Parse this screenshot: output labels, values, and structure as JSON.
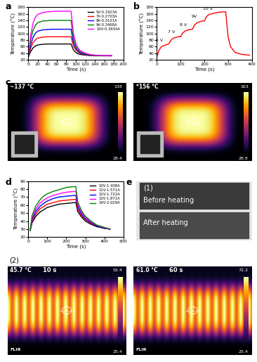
{
  "chart_data": [
    {
      "type": "line",
      "panel": "a",
      "x_label": "Time (s)",
      "y_label": "Temperature (°C)",
      "xlim": [
        0,
        200
      ],
      "xticks": [
        0,
        20,
        40,
        60,
        80,
        100,
        120,
        140,
        160,
        180,
        200
      ],
      "ylim": [
        20,
        180
      ],
      "yticks": [
        20,
        40,
        60,
        80,
        100,
        120,
        140,
        160,
        180
      ],
      "legend": "upper right",
      "x": [
        0,
        5,
        10,
        15,
        20,
        30,
        40,
        50,
        60,
        70,
        80,
        90,
        95,
        100,
        105,
        110,
        120,
        130,
        140,
        160,
        175
      ],
      "series": [
        {
          "name": "5V-0.1923A",
          "color": "#000000",
          "values": [
            28,
            45,
            56,
            62,
            65,
            67,
            68,
            68,
            68,
            68,
            68,
            68,
            50,
            42,
            38,
            36,
            34,
            33,
            32,
            32,
            32
          ]
        },
        {
          "name": "7V-0.2703A",
          "color": "#ff0000",
          "values": [
            28,
            55,
            72,
            81,
            86,
            89,
            90,
            90,
            90,
            90,
            90,
            90,
            62,
            50,
            43,
            39,
            35,
            33,
            32,
            32,
            32
          ]
        },
        {
          "name": "8V-0.3101A",
          "color": "#0000ff",
          "values": [
            28,
            65,
            88,
            101,
            107,
            111,
            112,
            113,
            113,
            113,
            113,
            113,
            72,
            55,
            46,
            41,
            36,
            34,
            33,
            32,
            32
          ]
        },
        {
          "name": "9V-0.3468A",
          "color": "#008000",
          "values": [
            28,
            80,
            110,
            125,
            133,
            138,
            139,
            140,
            140,
            140,
            140,
            140,
            85,
            62,
            50,
            44,
            38,
            35,
            33,
            32,
            32
          ]
        },
        {
          "name": "10V-0.3934A",
          "color": "#ff00ff",
          "values": [
            28,
            95,
            132,
            150,
            158,
            164,
            166,
            167,
            168,
            168,
            168,
            168,
            100,
            70,
            55,
            47,
            40,
            36,
            34,
            33,
            32
          ]
        }
      ]
    },
    {
      "type": "line",
      "panel": "b",
      "x_label": "Time (s)",
      "y_label": "Temperature (°C)",
      "xlim": [
        0,
        400
      ],
      "xticks": [
        0,
        100,
        200,
        300,
        400
      ],
      "ylim": [
        20,
        180
      ],
      "yticks": [
        20,
        40,
        60,
        80,
        100,
        120,
        140,
        160,
        180
      ],
      "annotations": [
        "5 V",
        "7 V",
        "8 V",
        "9V",
        "10 V"
      ],
      "x": [
        0,
        10,
        20,
        40,
        50,
        60,
        70,
        90,
        100,
        110,
        120,
        140,
        150,
        160,
        170,
        190,
        200,
        210,
        220,
        260,
        290,
        300,
        310,
        330,
        360,
        390
      ],
      "series": [
        {
          "color": "#ff0000",
          "values": [
            28,
            50,
            60,
            66,
            68,
            80,
            86,
            90,
            90,
            102,
            108,
            112,
            113,
            127,
            133,
            138,
            138,
            152,
            158,
            165,
            166,
            90,
            60,
            42,
            36,
            34
          ]
        }
      ]
    },
    {
      "type": "line",
      "panel": "d",
      "x_label": "Time (s)",
      "y_label": "Temperature (°C)",
      "xlim": [
        0,
        500
      ],
      "xticks": [
        0,
        100,
        200,
        300,
        400,
        500
      ],
      "ylim": [
        20,
        90
      ],
      "yticks": [
        20,
        30,
        40,
        50,
        60,
        70,
        80,
        90
      ],
      "legend": "upper right",
      "x": [
        10,
        20,
        40,
        60,
        80,
        100,
        130,
        160,
        200,
        240,
        250,
        260,
        280,
        300,
        330,
        360,
        400,
        430
      ],
      "series": [
        {
          "name": "10V-1.408A",
          "color": "#000000",
          "values": [
            28,
            38,
            46,
            51,
            54,
            57,
            59,
            61,
            62,
            63,
            63,
            52,
            45,
            40,
            36,
            33,
            31,
            30
          ]
        },
        {
          "name": "11V-1.571A",
          "color": "#ff0000",
          "values": [
            28,
            40,
            49,
            55,
            58,
            61,
            63,
            65,
            66,
            67,
            67,
            55,
            47,
            42,
            37,
            34,
            31,
            30
          ]
        },
        {
          "name": "12V-1.722A",
          "color": "#0000ff",
          "values": [
            28,
            42,
            52,
            58,
            62,
            65,
            68,
            70,
            71,
            72,
            72,
            58,
            49,
            43,
            38,
            34,
            31,
            30
          ]
        },
        {
          "name": "13V-1.871A",
          "color": "#ff00ff",
          "values": [
            28,
            44,
            55,
            62,
            66,
            69,
            72,
            74,
            76,
            77,
            77,
            61,
            51,
            45,
            39,
            35,
            32,
            30
          ]
        },
        {
          "name": "14V-2.029A",
          "color": "#008000",
          "values": [
            28,
            47,
            59,
            66,
            71,
            74,
            77,
            79,
            82,
            83,
            83,
            64,
            53,
            46,
            40,
            35,
            32,
            30
          ]
        }
      ]
    }
  ],
  "thermal_c": {
    "panel": "c",
    "images": [
      {
        "reading": "~137 °C",
        "scale_max": "138",
        "scale_min": "28.4"
      },
      {
        "reading": "*156 °C",
        "scale_max": "163",
        "scale_min": "28.8"
      }
    ]
  },
  "photos_e1": {
    "panel": "e",
    "label": "(1)",
    "captions": [
      "Before heating",
      "After heating"
    ]
  },
  "thermal_e2": {
    "label": "(2)",
    "images": [
      {
        "reading": "45.7 °C",
        "time": "10 s",
        "scale_max": "52.4",
        "scale_min": "25.4",
        "brand": "FLIR"
      },
      {
        "reading": "61.0 °C",
        "time": "60 s",
        "scale_max": "72.2",
        "scale_min": "25.4",
        "brand": "FLIR"
      }
    ]
  }
}
